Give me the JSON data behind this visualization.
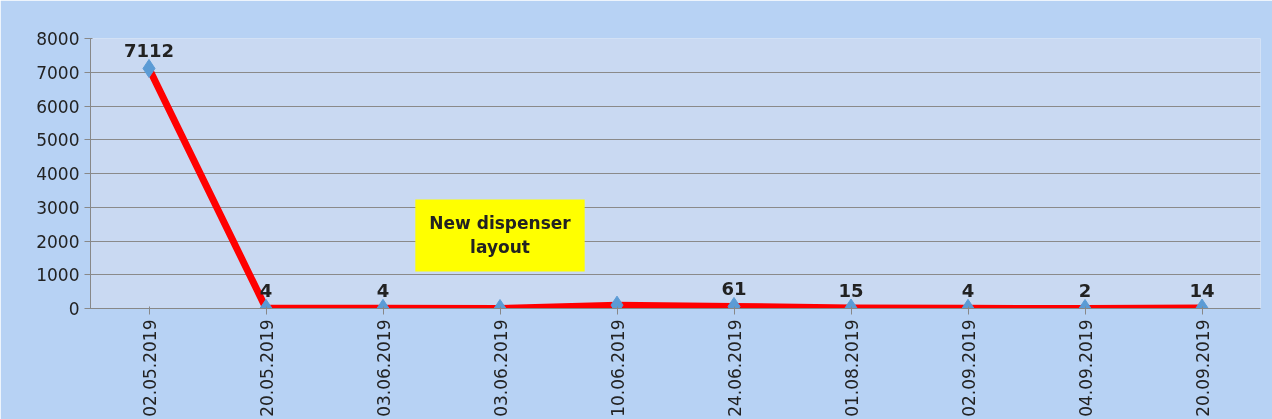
{
  "chart_data": {
    "type": "line",
    "categories": [
      "02.05.2019",
      "20.05.2019",
      "03.06.2019",
      "03.06.2019",
      "10.06.2019",
      "24.06.2019",
      "01.08.2019",
      "02.09.2019",
      "04.09.2019",
      "20.09.2019"
    ],
    "series": [
      {
        "color": "#ff0000",
        "values": [
          7112,
          4,
          4,
          0,
          100,
          61,
          15,
          4,
          2,
          14
        ],
        "value_labels": [
          "7112",
          "4",
          "4",
          null,
          null,
          "61",
          "15",
          "4",
          "2",
          "14"
        ]
      }
    ],
    "marker": "diamond",
    "ylim": [
      0,
      8000
    ],
    "yticks": [
      0,
      1000,
      2000,
      3000,
      4000,
      5000,
      6000,
      7000,
      8000
    ],
    "grid": "y",
    "annotations": [
      "New dispenser layout"
    ]
  }
}
